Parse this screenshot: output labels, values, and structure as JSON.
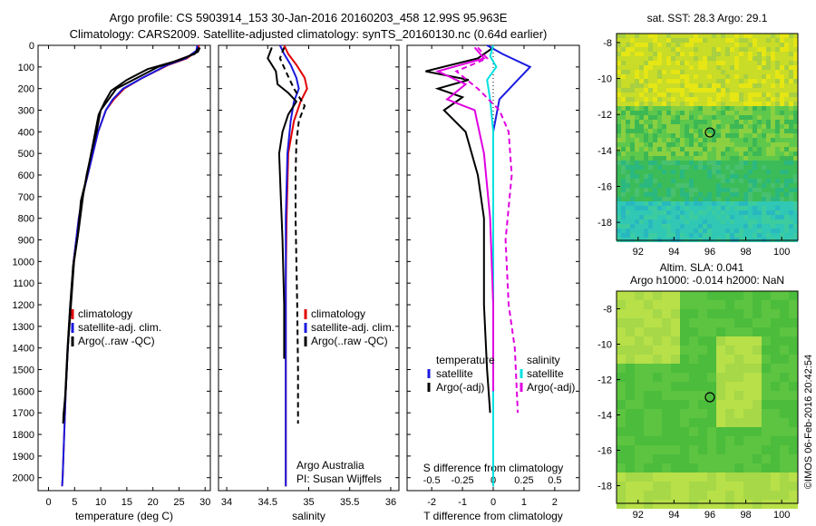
{
  "header": {
    "line1": "Argo profile: CS 5903914_153 30-Jan-2016 20160203_458 12.99S 95.963E",
    "line2": "Climatology: CARS2009. Satellite-adjusted climatology: synTS_20160130.nc (0.64d earlier)"
  },
  "colors": {
    "climatology": "#e00000",
    "satellite": "#1a1ae0",
    "argo": "#000000",
    "sal_satellite": "#00e0e0",
    "sal_argo": "#e000e0"
  },
  "chart_data": [
    {
      "type": "line",
      "xlabel": "temperature (deg C)",
      "xlim": [
        -2,
        31
      ],
      "ylim": [
        2060,
        0
      ],
      "xticks": [
        "0",
        "5",
        "10",
        "15",
        "20",
        "25",
        "30"
      ],
      "yticks": [
        "0",
        "100",
        "200",
        "300",
        "400",
        "500",
        "600",
        "700",
        "800",
        "900",
        "1000",
        "1100",
        "1200",
        "1300",
        "1400",
        "1500",
        "1600",
        "1700",
        "1800",
        "1900",
        "2000"
      ],
      "legend": [
        "climatology",
        "satellite-adj. clim.",
        "Argo(..raw -QC)"
      ],
      "series": [
        {
          "name": "climatology",
          "style": "solid",
          "color": "climatology",
          "x": [
            28.8,
            28.5,
            26.5,
            23,
            18,
            14.5,
            12.5,
            11,
            9.5,
            8.5,
            7.5,
            6.5,
            5.8,
            4.8,
            4.2,
            3.7,
            3.3,
            3,
            2.7,
            2.6
          ],
          "y": [
            0,
            25,
            60,
            90,
            150,
            200,
            250,
            300,
            400,
            500,
            600,
            700,
            800,
            1000,
            1200,
            1400,
            1600,
            1800,
            2000,
            2040
          ]
        },
        {
          "name": "satellite-adj. clim.",
          "style": "solid",
          "color": "satellite",
          "x": [
            28.5,
            28.3,
            26.3,
            22.8,
            18,
            14.3,
            12.3,
            11,
            9.5,
            8.5,
            7.5,
            6.5,
            5.8,
            4.8,
            4.2,
            3.7,
            3.3,
            3,
            2.7,
            2.6
          ],
          "y": [
            0,
            25,
            60,
            90,
            150,
            200,
            250,
            300,
            400,
            500,
            600,
            700,
            800,
            1000,
            1200,
            1400,
            1600,
            1800,
            2000,
            2040
          ]
        },
        {
          "name": "Argo(..raw -QC)",
          "style": "solid",
          "color": "argo",
          "x": [
            29,
            28.6,
            25.5,
            21,
            17,
            13,
            11.5,
            10,
            9.2,
            8.2,
            7.3,
            6.6,
            5.8,
            4.9,
            4.3,
            3.7,
            3.3,
            2.9,
            2.8
          ],
          "y": [
            10,
            30,
            65,
            100,
            150,
            200,
            250,
            300,
            400,
            500,
            600,
            700,
            850,
            1000,
            1200,
            1400,
            1600,
            1700,
            1750
          ]
        },
        {
          "name": "Argo raw",
          "style": "solid",
          "color": "argo",
          "x": [
            28.8,
            28,
            24,
            19,
            15,
            12,
            10.8,
            9.6,
            8.8,
            8,
            7.2,
            6.2,
            5.6,
            4.7,
            4.1,
            3.6,
            3.2,
            2.9
          ],
          "y": [
            10,
            40,
            75,
            110,
            160,
            210,
            260,
            320,
            420,
            520,
            620,
            720,
            880,
            1020,
            1220,
            1420,
            1620,
            1740
          ]
        }
      ]
    },
    {
      "type": "line",
      "xlabel": "salinity",
      "xlim": [
        33.9,
        36.1
      ],
      "ylim": [
        2060,
        0
      ],
      "xticks": [
        "34",
        "34.5",
        "35",
        "35.5",
        "36"
      ],
      "legend": [
        "climatology",
        "satellite-adj. clim.",
        "Argo(..raw -QC)"
      ],
      "annotation": [
        "Argo Australia",
        "PI: Susan Wijffels"
      ],
      "series": [
        {
          "name": "climatology",
          "style": "solid",
          "color": "climatology",
          "x": [
            34.7,
            34.75,
            34.85,
            34.95,
            34.98,
            34.9,
            34.82,
            34.75,
            34.73,
            34.72,
            34.72,
            34.72,
            34.72,
            34.72
          ],
          "y": [
            0,
            40,
            90,
            150,
            200,
            260,
            350,
            500,
            800,
            1100,
            1400,
            1700,
            2000,
            2040
          ]
        },
        {
          "name": "satellite-adj. clim.",
          "style": "solid",
          "color": "satellite",
          "x": [
            34.65,
            34.7,
            34.78,
            34.85,
            34.88,
            34.82,
            34.78,
            34.74,
            34.72,
            34.72,
            34.72,
            34.72,
            34.72
          ],
          "y": [
            0,
            40,
            90,
            150,
            200,
            260,
            350,
            500,
            800,
            1100,
            1400,
            1700,
            2040
          ]
        },
        {
          "name": "Argo(..raw -QC)",
          "style": "solid",
          "color": "argo",
          "x": [
            34.55,
            34.5,
            34.6,
            34.62,
            34.75,
            34.85,
            34.75,
            34.68,
            34.64,
            34.66,
            34.68,
            34.7,
            34.7
          ],
          "y": [
            10,
            60,
            120,
            180,
            220,
            260,
            320,
            400,
            500,
            700,
            900,
            1200,
            1450
          ]
        },
        {
          "name": "Argo adj",
          "style": "dashed",
          "color": "argo",
          "x": [
            34.7,
            34.65,
            34.72,
            34.82,
            34.95,
            34.88,
            34.85,
            34.84,
            34.84,
            34.85,
            34.86,
            34.87,
            34.87
          ],
          "y": [
            10,
            60,
            120,
            200,
            280,
            350,
            450,
            600,
            800,
            1000,
            1200,
            1500,
            1750
          ]
        }
      ]
    },
    {
      "type": "line",
      "xlabel": "T difference from climatology",
      "xlabel_top": "S difference from climatology",
      "xlim": [
        -2.8,
        2.8
      ],
      "ylim": [
        2060,
        0
      ],
      "xticks": [
        "-2",
        "-1",
        "0",
        "1",
        "2"
      ],
      "xticks_top": [
        "-0.5",
        "-0.25",
        "0",
        "0.25",
        "0.5"
      ],
      "legend_left": {
        "title": "temperature",
        "items": [
          "satellite",
          "Argo(-adj)"
        ]
      },
      "legend_right": {
        "title": "salinity",
        "items": [
          "satellite",
          "Argo(-adj)"
        ]
      },
      "series": [
        {
          "name": "T satellite",
          "style": "solid",
          "color": "satellite",
          "x": [
            -0.2,
            0.3,
            1.2,
            0.8,
            0.2,
            0,
            0,
            0,
            0,
            0,
            0,
            0
          ],
          "y": [
            0,
            40,
            100,
            160,
            250,
            400,
            600,
            900,
            1200,
            1500,
            1800,
            2040
          ]
        },
        {
          "name": "T Argo",
          "style": "solid",
          "color": "argo",
          "x": [
            0,
            -0.5,
            -2.2,
            -0.8,
            -1.8,
            -1,
            -1.6,
            -0.9,
            -0.5,
            -0.3,
            -0.3,
            -0.3,
            -0.2,
            -0.1
          ],
          "y": [
            10,
            60,
            120,
            160,
            200,
            240,
            300,
            400,
            600,
            800,
            1000,
            1200,
            1500,
            1700
          ]
        },
        {
          "name": "S satellite",
          "style": "solid",
          "color": "sal_satellite",
          "x": [
            0,
            -0.1,
            0.1,
            -0.2,
            -0.1,
            0,
            0,
            0,
            0,
            0
          ],
          "y": [
            0,
            50,
            100,
            160,
            250,
            400,
            800,
            1200,
            1600,
            2040
          ]
        },
        {
          "name": "S Argo",
          "style": "solid",
          "color": "sal_argo",
          "x": [
            -0.6,
            -0.3,
            -1.8,
            -0.9,
            -1.5,
            -0.6,
            -0.3,
            -0.1,
            0,
            0
          ],
          "y": [
            10,
            60,
            120,
            180,
            250,
            300,
            500,
            800,
            1200,
            1600
          ]
        },
        {
          "name": "S Argo adj",
          "style": "dashed",
          "color": "sal_argo",
          "x": [
            -0.5,
            -0.2,
            -1.2,
            -0.5,
            0.2,
            0.5,
            0.6,
            0.4,
            0.5,
            0.7,
            0.8
          ],
          "y": [
            10,
            60,
            120,
            200,
            300,
            400,
            600,
            900,
            1200,
            1400,
            1700
          ]
        }
      ]
    },
    {
      "type": "heatmap",
      "title": "sat. SST: 28.3  Argo: 29.1",
      "xlim": [
        90.8,
        100.9
      ],
      "ylim": [
        -19,
        -7.5
      ],
      "xticks": [
        "92",
        "94",
        "96",
        "98",
        "100"
      ],
      "yticks": [
        "-8",
        "-10",
        "-12",
        "-14",
        "-16",
        "-18"
      ],
      "marker": {
        "lon": 96,
        "lat": -13
      }
    },
    {
      "type": "heatmap",
      "title_line1": "Altim. SLA: 0.041",
      "title_line2": "Argo h1000: -0.014  h2000: NaN",
      "xlim": [
        90.8,
        100.9
      ],
      "ylim": [
        -19,
        -7
      ],
      "xticks": [
        "92",
        "94",
        "96",
        "98",
        "100"
      ],
      "yticks": [
        "-8",
        "-10",
        "-12",
        "-14",
        "-16",
        "-18"
      ],
      "marker": {
        "lon": 96,
        "lat": -13
      }
    }
  ],
  "footer": {
    "imos_stamp": "©IMOS 06-Feb-2016 20:42:54"
  }
}
